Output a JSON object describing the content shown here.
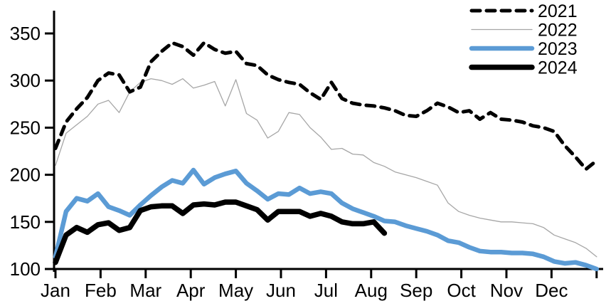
{
  "chart_data": {
    "type": "line",
    "title": "",
    "xlabel": "",
    "ylabel": "",
    "x_unit": "weekly observations across one year",
    "x_tick_labels": [
      "Jan",
      "Feb",
      "Mar",
      "Apr",
      "May",
      "Jun",
      "Jul",
      "Aug",
      "Sep",
      "Oct",
      "Nov",
      "Dec"
    ],
    "y_ticks": [
      100,
      150,
      200,
      250,
      300,
      350
    ],
    "ylim": [
      100,
      375
    ],
    "grid": false,
    "legend_position": "top-right",
    "axis_color": "#000000",
    "series": [
      {
        "name": "2022",
        "color": "#a6a6a6",
        "line_style": "solid",
        "line_width": 1.3,
        "values": [
          210,
          244,
          253,
          262,
          275,
          279,
          266,
          288,
          298,
          302,
          300,
          296,
          302,
          292,
          295,
          299,
          273,
          301,
          265,
          258,
          239,
          246,
          266,
          264,
          250,
          240,
          227,
          228,
          222,
          221,
          213,
          209,
          203,
          200,
          197,
          193,
          189,
          170,
          161,
          157,
          154,
          152,
          150,
          150,
          149,
          148,
          144,
          136,
          132,
          128,
          122,
          113
        ]
      },
      {
        "name": "2021",
        "color": "#000000",
        "line_style": "dashed",
        "line_width": 5,
        "values": [
          228,
          256,
          270,
          282,
          300,
          308,
          306,
          288,
          293,
          320,
          331,
          340,
          336,
          327,
          340,
          333,
          329,
          331,
          318,
          316,
          306,
          301,
          298,
          296,
          287,
          280,
          298,
          281,
          276,
          274,
          273,
          271,
          268,
          263,
          262,
          268,
          276,
          272,
          266,
          268,
          259,
          266,
          259,
          258,
          256,
          252,
          250,
          246,
          231,
          219,
          206,
          215
        ]
      },
      {
        "name": "2023",
        "color": "#5b9bd5",
        "line_style": "solid",
        "line_width": 6.5,
        "values": [
          113,
          161,
          175,
          172,
          180,
          166,
          162,
          157,
          168,
          178,
          187,
          194,
          191,
          205,
          190,
          197,
          201,
          204,
          191,
          183,
          174,
          180,
          179,
          186,
          180,
          182,
          180,
          170,
          164,
          160,
          156,
          151,
          150,
          146,
          143,
          140,
          136,
          130,
          128,
          123,
          119,
          118,
          118,
          117,
          117,
          116,
          113,
          108,
          106,
          107,
          104,
          100
        ]
      },
      {
        "name": "2024",
        "color": "#000000",
        "line_style": "solid",
        "line_width": 7.5,
        "values": [
          107,
          136,
          144,
          139,
          147,
          149,
          141,
          144,
          162,
          166,
          167,
          167,
          159,
          168,
          169,
          168,
          171,
          171,
          167,
          163,
          152,
          161,
          161,
          161,
          156,
          159,
          156,
          150,
          148,
          148,
          150,
          138
        ]
      }
    ],
    "legend_order": [
      "2021",
      "2022",
      "2023",
      "2024"
    ]
  }
}
